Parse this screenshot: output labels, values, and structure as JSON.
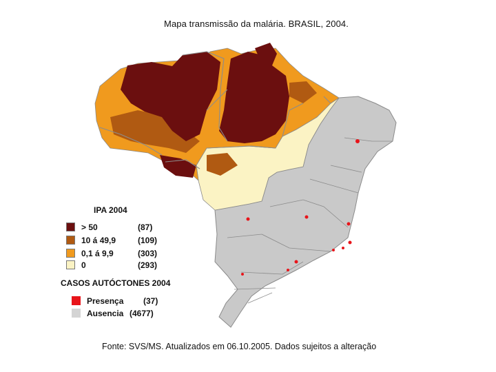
{
  "title": "Mapa transmissão da malária. BRASIL, 2004.",
  "ipa_legend": {
    "heading": "IPA 2004",
    "items": [
      {
        "label": "> 50",
        "count": "(87)",
        "color": "#6b0f0f"
      },
      {
        "label": "10  á 49,9",
        "count": "(109)",
        "color": "#b05a12"
      },
      {
        "label": "0,1  á   9,9",
        "count": "(303)",
        "color": "#f09a1e"
      },
      {
        "label": "0",
        "count": "(293)",
        "color": "#fbf3c4"
      }
    ]
  },
  "cases_legend": {
    "heading": "CASOS AUTÓCTONES 2004",
    "items": [
      {
        "label": "Presença",
        "count": "(37)",
        "color": "#e8141a"
      },
      {
        "label": "Ausencia",
        "count": "(4677)",
        "color": "#d4d4d4"
      }
    ]
  },
  "source": "Fonte: SVS/MS. Atualizados em  06.10.2005. Dados sujeitos a alteração"
}
